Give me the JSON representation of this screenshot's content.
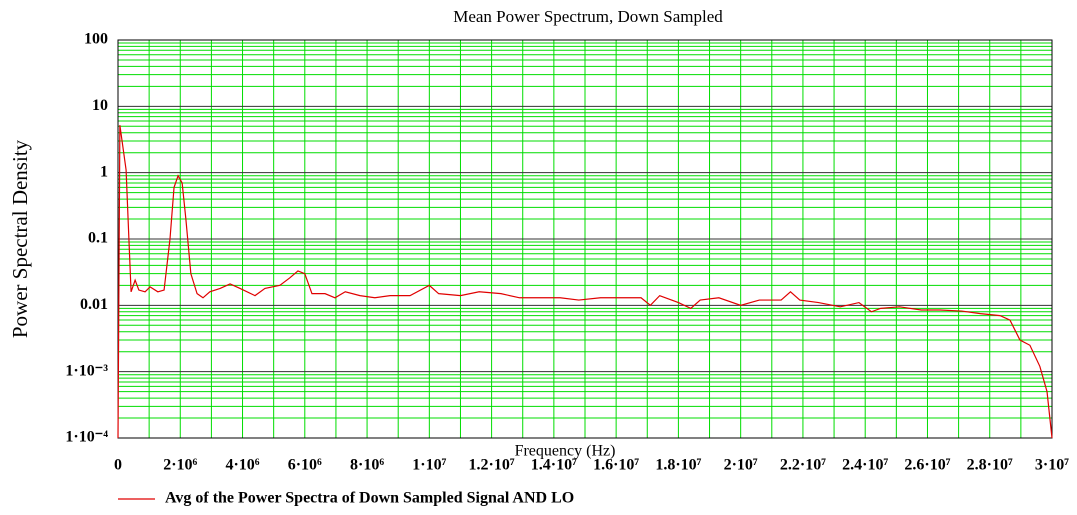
{
  "chart_data": {
    "type": "line",
    "title": "Mean Power Spectrum, Down Sampled",
    "x_label": "Frequency (Hz)",
    "y_label": "Power Spectral Density",
    "log_y": true,
    "grid": true,
    "minor_grid": true,
    "grid_color": "#00dd00",
    "major_grid_color": "#333333",
    "legend": "bottom-left",
    "xlim": [
      0,
      30000000
    ],
    "ylim": [
      0.0001,
      100
    ],
    "xticks": [
      0,
      {
        "value": 2000000,
        "label": "2·10⁶"
      },
      {
        "value": 4000000,
        "label": "4·10⁶"
      },
      {
        "value": 6000000,
        "label": "6·10⁶"
      },
      {
        "value": 8000000,
        "label": "8·10⁶"
      },
      {
        "value": 10000000,
        "label": "1·10⁷"
      },
      {
        "value": 12000000,
        "label": "1.2·10⁷"
      },
      {
        "value": 14000000,
        "label": "1.4·10⁷"
      },
      {
        "value": 16000000,
        "label": "1.6·10⁷"
      },
      {
        "value": 18000000,
        "label": "1.8·10⁷"
      },
      {
        "value": 20000000,
        "label": "2·10⁷"
      },
      {
        "value": 22000000,
        "label": "2.2·10⁷"
      },
      {
        "value": 24000000,
        "label": "2.4·10⁷"
      },
      {
        "value": 26000000,
        "label": "2.6·10⁷"
      },
      {
        "value": 28000000,
        "label": "2.8·10⁷"
      },
      {
        "value": 30000000,
        "label": "3·10⁷"
      }
    ],
    "yticks": [
      {
        "value": 0.0001,
        "label": "1·10⁻⁴"
      },
      {
        "value": 0.001,
        "label": "1·10⁻³"
      },
      0.01,
      0.1,
      1,
      10,
      100
    ],
    "x": [
      0,
      60000,
      260000,
      350000,
      420000,
      550000,
      670000,
      870000,
      1030000,
      1280000,
      1480000,
      1670000,
      1800000,
      1930000,
      2060000,
      2180000,
      2340000,
      2540000,
      2730000,
      2950000,
      3280000,
      3600000,
      3920000,
      4400000,
      4720000,
      5200000,
      5520000,
      5780000,
      6000000,
      6230000,
      6650000,
      6970000,
      7300000,
      7770000,
      8250000,
      8740000,
      9380000,
      10000000,
      10300000,
      11000000,
      11600000,
      12300000,
      12900000,
      13600000,
      14200000,
      14800000,
      15500000,
      16100000,
      16800000,
      17100000,
      17400000,
      18000000,
      18400000,
      18700000,
      19300000,
      20000000,
      20600000,
      21300000,
      21600000,
      21900000,
      22500000,
      23200000,
      23800000,
      24200000,
      24500000,
      25100000,
      25800000,
      26400000,
      27100000,
      27700000,
      28330000,
      28650000,
      28970000,
      29290000,
      29610000,
      29840000,
      30000000
    ],
    "series": [
      {
        "name": "Avg of the Power Spectra of Down Sampled Signal AND LO",
        "color": "#e00000",
        "values": [
          0.0001,
          5.2,
          1.1,
          0.1,
          0.016,
          0.024,
          0.017,
          0.016,
          0.019,
          0.016,
          0.017,
          0.1,
          0.6,
          0.9,
          0.7,
          0.2,
          0.03,
          0.015,
          0.013,
          0.016,
          0.018,
          0.021,
          0.018,
          0.014,
          0.018,
          0.02,
          0.026,
          0.033,
          0.03,
          0.015,
          0.015,
          0.013,
          0.016,
          0.014,
          0.013,
          0.014,
          0.014,
          0.02,
          0.015,
          0.014,
          0.016,
          0.015,
          0.013,
          0.013,
          0.013,
          0.012,
          0.013,
          0.013,
          0.013,
          0.01,
          0.014,
          0.011,
          0.009,
          0.012,
          0.013,
          0.01,
          0.012,
          0.012,
          0.016,
          0.012,
          0.011,
          0.0095,
          0.011,
          0.008,
          0.009,
          0.0095,
          0.0085,
          0.0085,
          0.0082,
          0.0075,
          0.007,
          0.006,
          0.003,
          0.0025,
          0.0012,
          0.0005,
          0.0001
        ]
      }
    ]
  }
}
